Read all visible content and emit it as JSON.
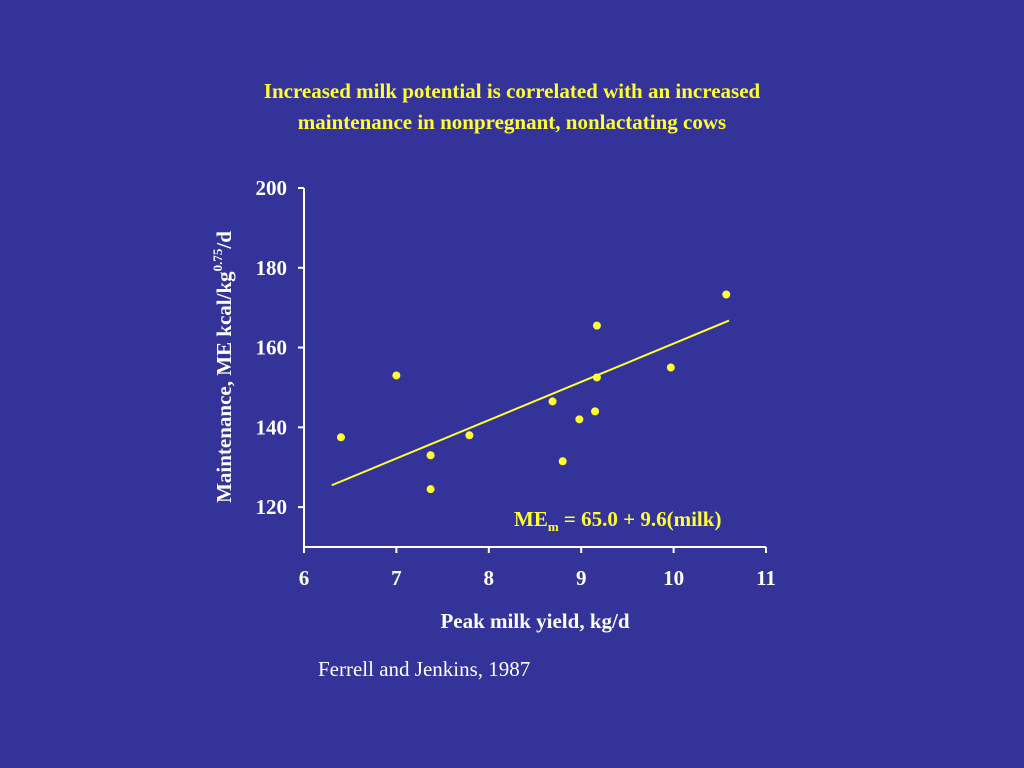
{
  "title": {
    "line1": "Increased milk potential is correlated with an increased",
    "line2": "maintenance in nonpregnant, nonlactating cows"
  },
  "citation": "Ferrell and Jenkins, 1987",
  "colors": {
    "background": "#333399",
    "accent": "#ffff33",
    "axes": "#ffffff"
  },
  "chart_data": {
    "type": "scatter",
    "title": "Increased milk potential is correlated with an increased maintenance in nonpregnant, nonlactating cows",
    "xlabel": "Peak milk yield, kg/d",
    "ylabel_main": "Maintenance, ME kcal/kg",
    "ylabel_sup": "0.75",
    "ylabel_tail": "/d",
    "xlim": [
      6,
      11
    ],
    "ylim": [
      110,
      200
    ],
    "x_ticks": [
      6,
      7,
      8,
      9,
      10,
      11
    ],
    "y_ticks": [
      120,
      140,
      160,
      180,
      200
    ],
    "grid": false,
    "series": [
      {
        "points": [
          {
            "x": 6.4,
            "y": 137.5
          },
          {
            "x": 7.0,
            "y": 153.0
          },
          {
            "x": 7.37,
            "y": 133.0
          },
          {
            "x": 7.37,
            "y": 124.5
          },
          {
            "x": 7.79,
            "y": 138.0
          },
          {
            "x": 8.69,
            "y": 146.5
          },
          {
            "x": 8.8,
            "y": 131.5
          },
          {
            "x": 8.98,
            "y": 142.0
          },
          {
            "x": 9.15,
            "y": 144.0
          },
          {
            "x": 9.17,
            "y": 165.5
          },
          {
            "x": 9.17,
            "y": 152.5
          },
          {
            "x": 9.97,
            "y": 155.0
          },
          {
            "x": 10.57,
            "y": 173.3
          }
        ]
      }
    ],
    "regression": {
      "x_start": 6.3,
      "x_end": 10.6,
      "intercept": 65.0,
      "slope": 9.6,
      "label_main": "ME",
      "label_sub": "m",
      "label_rest": " = 65.0 + 9.6(milk)"
    }
  }
}
